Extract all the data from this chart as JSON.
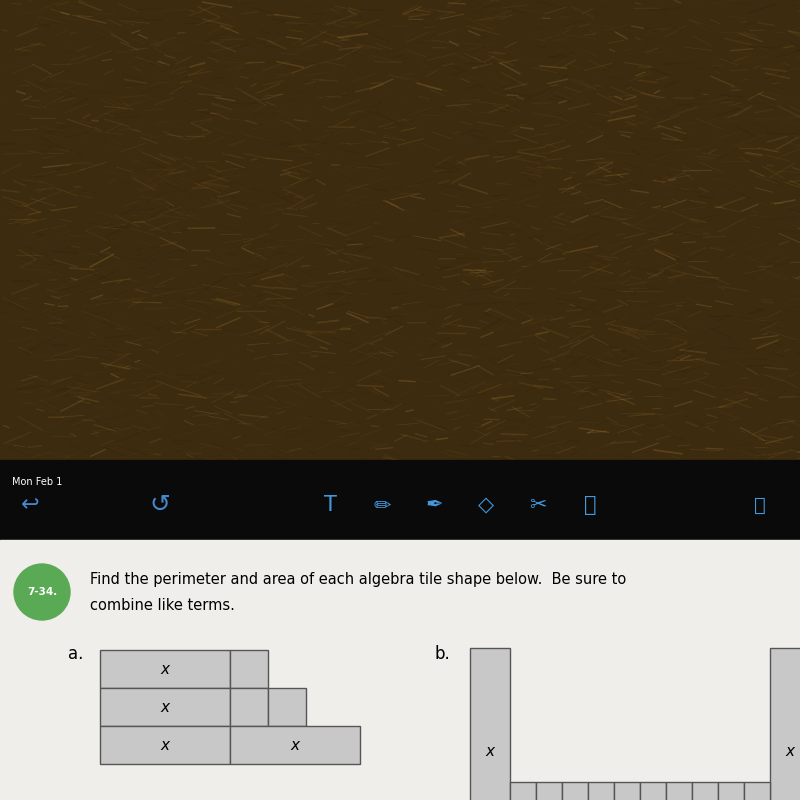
{
  "tile_fill": "#c8c8c8",
  "tile_edge": "#555555",
  "label_a": "a.",
  "label_b": "b.",
  "carpet_color": "#3d2b10",
  "carpet_highlight": "#7a5830",
  "toolbar_bg": "#111111",
  "content_bg": "#f0eeeb",
  "toolbar_text": "Mon Feb 1",
  "problem_num": "7-34.",
  "problem_text1": "Find the perimeter and area of each algebra tile shape below.  Be sure to",
  "problem_text2": "combine like terms.",
  "green_color": "#5aaa55"
}
